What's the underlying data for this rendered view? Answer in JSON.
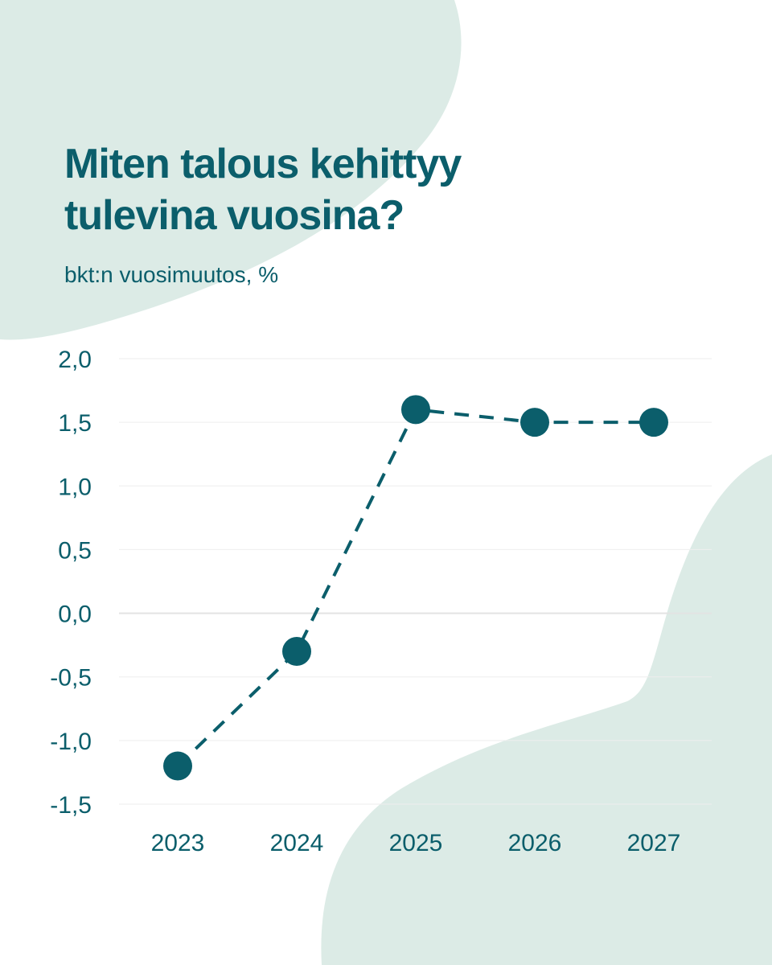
{
  "title": "Miten talous kehittyy tulevina vuosina?",
  "subtitle": "bkt:n vuosimuutos, %",
  "colors": {
    "primary": "#0b5e6b",
    "blob": "#dcebe6",
    "grid": "#eeeeee",
    "background": "#ffffff"
  },
  "chart_data": {
    "type": "line",
    "title": "Miten talous kehittyy tulevina vuosina?",
    "subtitle": "bkt:n vuosimuutos, %",
    "xlabel": "",
    "ylabel": "",
    "categories": [
      "2023",
      "2024",
      "2025",
      "2026",
      "2027"
    ],
    "series": [
      {
        "values": [
          -1.2,
          -0.3,
          1.6,
          1.5,
          1.5
        ]
      }
    ],
    "ylim": [
      -1.5,
      2.0
    ],
    "yticks": [
      2.0,
      1.5,
      1.0,
      0.5,
      0.0,
      -0.5,
      -1.0,
      -1.5
    ],
    "ytick_labels": [
      "2,0",
      "1,5",
      "1,0",
      "0,5",
      "0,0",
      "-0,5",
      "-1,0",
      "-1,5"
    ],
    "line_style": "dashed",
    "markers": "filled-circle",
    "grid": true,
    "legend": "none"
  }
}
